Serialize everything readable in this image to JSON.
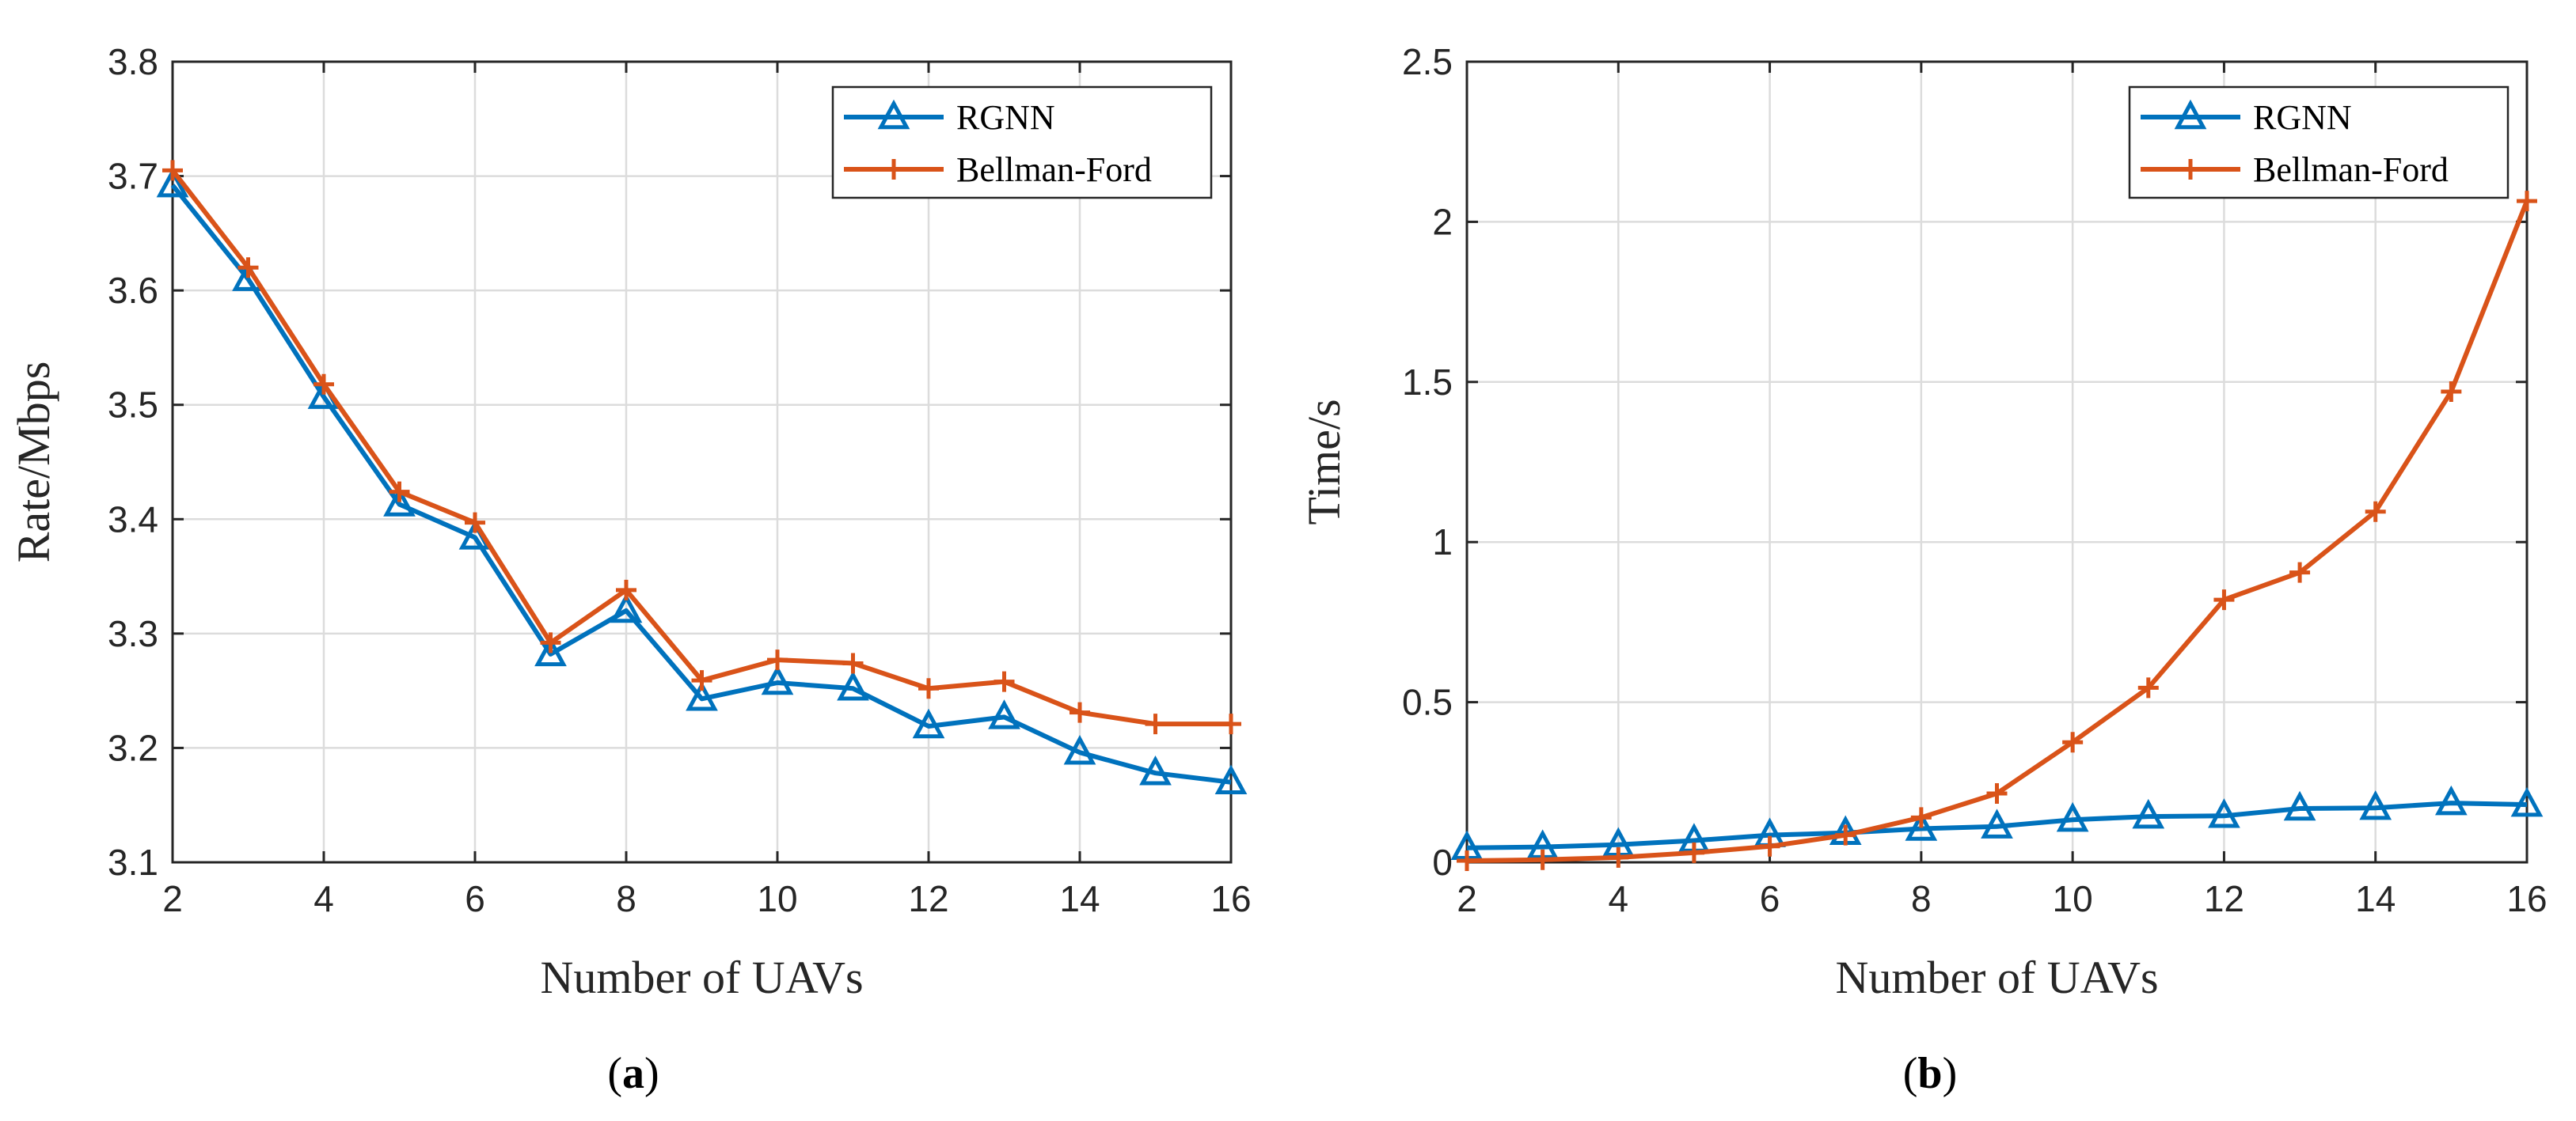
{
  "colors": {
    "rgnn": "#0072BD",
    "bellman": "#D95319"
  },
  "chart_data": [
    {
      "type": "line",
      "caption": "a",
      "xlabel": "Number of UAVs",
      "ylabel": "Rate/Mbps",
      "xlim": [
        2,
        16
      ],
      "ylim": [
        3.1,
        3.8
      ],
      "xticks": [
        2,
        4,
        6,
        8,
        10,
        12,
        14,
        16
      ],
      "yticks": [
        3.1,
        3.2,
        3.3,
        3.4,
        3.5,
        3.6,
        3.7,
        3.8
      ],
      "ytick_labels": [
        "3.1",
        "3.2",
        "3.3",
        "3.4",
        "3.5",
        "3.6",
        "3.7",
        "3.8"
      ],
      "grid": true,
      "legend_position": "top-right",
      "x": [
        2,
        3,
        4,
        5,
        6,
        7,
        8,
        9,
        10,
        11,
        12,
        13,
        14,
        15,
        16
      ],
      "series": [
        {
          "name": "RGNN",
          "marker": "triangle",
          "values": [
            3.692,
            3.61,
            3.507,
            3.413,
            3.384,
            3.282,
            3.32,
            3.243,
            3.257,
            3.252,
            3.219,
            3.227,
            3.196,
            3.178,
            3.17
          ]
        },
        {
          "name": "Bellman-Ford",
          "marker": "plus",
          "values": [
            3.705,
            3.62,
            3.518,
            3.424,
            3.397,
            3.292,
            3.338,
            3.259,
            3.277,
            3.274,
            3.252,
            3.258,
            3.231,
            3.221,
            3.221
          ]
        }
      ]
    },
    {
      "type": "line",
      "caption": "b",
      "xlabel": "Number of UAVs",
      "ylabel": "Time/s",
      "xlim": [
        2,
        16
      ],
      "ylim": [
        0,
        2.5
      ],
      "xticks": [
        2,
        4,
        6,
        8,
        10,
        12,
        14,
        16
      ],
      "yticks": [
        0,
        0.5,
        1,
        1.5,
        2,
        2.5
      ],
      "ytick_labels": [
        "0",
        "0.5",
        "1",
        "1.5",
        "2",
        "2.5"
      ],
      "grid": true,
      "legend_position": "top-right",
      "x": [
        2,
        3,
        4,
        5,
        6,
        7,
        8,
        9,
        10,
        11,
        12,
        13,
        14,
        15,
        16
      ],
      "series": [
        {
          "name": "RGNN",
          "marker": "triangle",
          "values": [
            0.045,
            0.048,
            0.055,
            0.068,
            0.085,
            0.092,
            0.105,
            0.112,
            0.133,
            0.143,
            0.145,
            0.168,
            0.17,
            0.185,
            0.18
          ]
        },
        {
          "name": "Bellman-Ford",
          "marker": "plus",
          "values": [
            0.005,
            0.008,
            0.015,
            0.03,
            0.05,
            0.085,
            0.14,
            0.215,
            0.375,
            0.545,
            0.82,
            0.905,
            1.095,
            1.47,
            2.065
          ]
        }
      ]
    }
  ]
}
